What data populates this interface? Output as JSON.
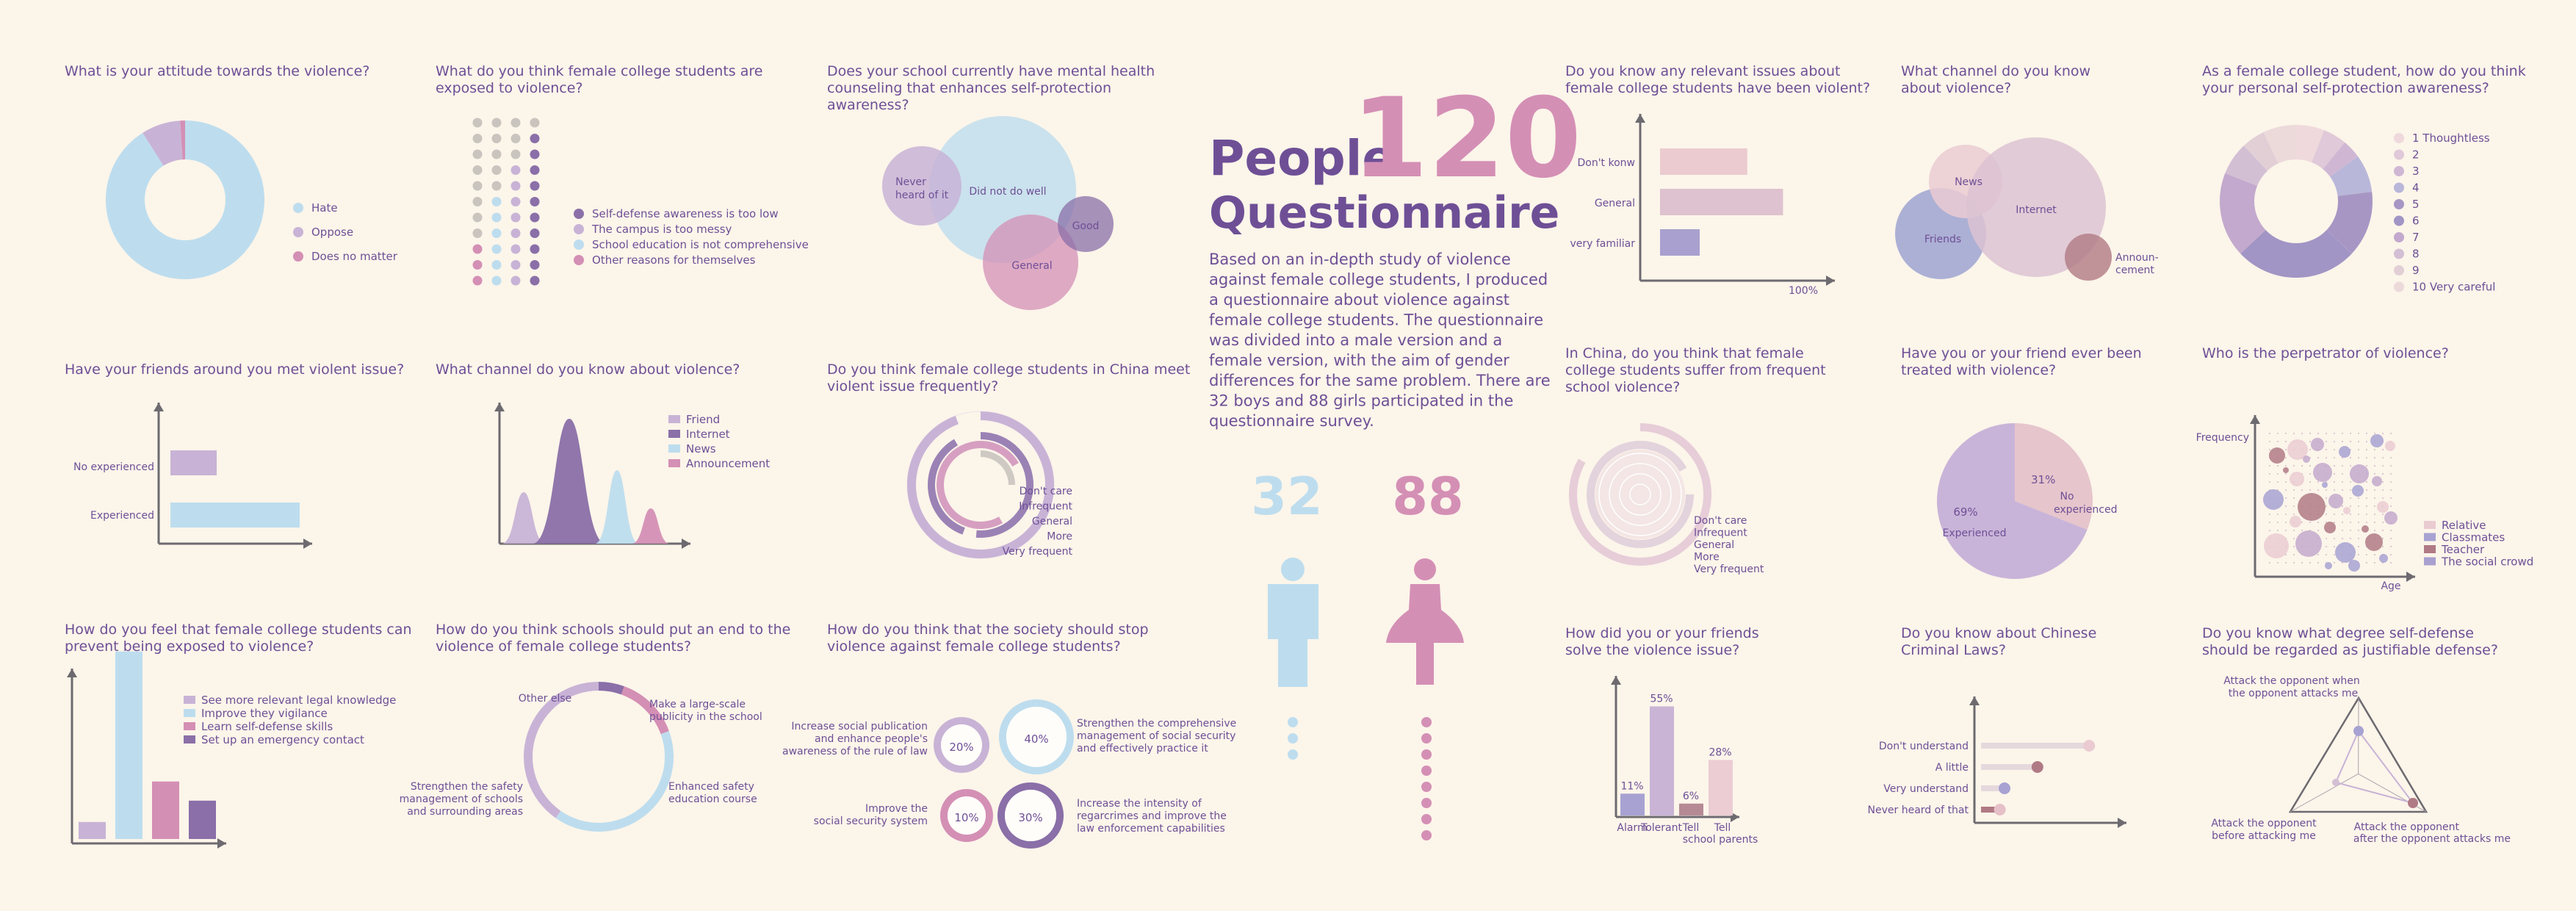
{
  "colors": {
    "bg": "#fcf5ea",
    "purple": "#6e4f96",
    "lightblue": "#bdddee",
    "lilac": "#c8b3d6",
    "pink": "#d48fb5",
    "darkpurple": "#8a6fa8",
    "rose": "#b07a85",
    "blush": "#eacbd2",
    "grey": "#c9c4be"
  },
  "header": {
    "word1": "People",
    "number": "120",
    "word2": "Questionnaire",
    "description": [
      "Based on an in-depth study of violence",
      "against female college students, I produced",
      "a questionnaire about violence against",
      "female college students. The questionnaire",
      "was divided into a male version and a",
      "female version, with the aim of gender",
      "differences for the same problem. There are",
      "32 boys and 88 girls participated in the",
      "questionnaire survey."
    ],
    "boys": "32",
    "girls": "88"
  },
  "chart_data": [
    {
      "id": "c1",
      "type": "pie",
      "title": "What is your attitude towards the violence?",
      "categories": [
        "Hate",
        "Oppose",
        "Does no matter"
      ],
      "values": [
        91,
        8,
        1
      ]
    },
    {
      "id": "c2",
      "type": "dot-matrix",
      "title": [
        "What do you think female college students are",
        "exposed to violence?"
      ],
      "categories": [
        "Self-defense awareness is too low",
        "The campus is too messy",
        "School education is not comprehensive",
        "Other reasons for themselves"
      ]
    },
    {
      "id": "c3",
      "type": "bubble",
      "title": [
        "Does your school currently have mental health",
        "counseling that enhances self-protection",
        "awareness?"
      ],
      "categories": [
        "Never heard of it",
        "Did not do well",
        "Good",
        "General"
      ]
    },
    {
      "id": "c4",
      "type": "bar",
      "title": [
        "Do you know any relevant issues about",
        "female college students have been violent?"
      ],
      "categories": [
        "Don't konw",
        "General",
        "very familiar"
      ],
      "values": [
        44,
        62,
        20
      ],
      "xtick": "100%"
    },
    {
      "id": "c5",
      "type": "bubble",
      "title": [
        "What channel do you know",
        "about violence?"
      ],
      "categories": [
        "News",
        "Internet",
        "Friends",
        "Announcement"
      ]
    },
    {
      "id": "c6",
      "type": "pie",
      "title": [
        "As a female college student, how do you think",
        "your personal self-protection awareness?"
      ],
      "categories": [
        "1  Thoughtless",
        "2",
        "3",
        "4",
        "5",
        "6",
        "7",
        "8",
        "9",
        "10 Very careful"
      ],
      "values": [
        6,
        5,
        4,
        8,
        14,
        26,
        18,
        7,
        5,
        7
      ]
    },
    {
      "id": "c7",
      "type": "bar",
      "title": "Have your friends around you met violent issue?",
      "categories": [
        "No experienced",
        "Experienced"
      ],
      "values": [
        25,
        75
      ]
    },
    {
      "id": "c8",
      "type": "area",
      "title": "What channel do you know about violence?",
      "categories": [
        "Friend",
        "Internet",
        "News",
        "Announcement"
      ]
    },
    {
      "id": "c9",
      "type": "radial-bar",
      "title": [
        "Do you think female college students in China meet",
        "violent issue frequently?"
      ],
      "categories": [
        "Don't care",
        "Infrequent",
        "General",
        "More",
        "Very frequent"
      ]
    },
    {
      "id": "c10",
      "type": "radial-bar",
      "title": [
        "In China, do you think that female",
        "college students suffer from frequent",
        "school violence?"
      ],
      "categories": [
        "Don't care",
        "Infrequent",
        "General",
        "More",
        "Very frequent"
      ]
    },
    {
      "id": "c11",
      "type": "pie",
      "title": [
        "Have you or your friend ever been",
        "treated with violence?"
      ],
      "categories": [
        "No experienced",
        "Experienced"
      ],
      "values": [
        31,
        69
      ],
      "labels": [
        "31%",
        "69%"
      ]
    },
    {
      "id": "c12",
      "type": "scatter",
      "title": "Who is the perpetrator of violence?",
      "xlabel": "Age",
      "ylabel": "Frequency",
      "categories": [
        "Relative",
        "Classmates",
        "Teacher",
        "The social crowd"
      ]
    },
    {
      "id": "c13",
      "type": "bar",
      "title": [
        "How do you feel that female college students can",
        "prevent being exposed to violence?"
      ],
      "categories": [
        "See more relevant legal knowledge",
        "Improve they vigilance",
        "Learn self-defense skills",
        "Set up an emergency contact"
      ],
      "values": [
        8,
        88,
        27,
        18
      ]
    },
    {
      "id": "c14",
      "type": "pie",
      "title": [
        "How do you think schools should put an end to the",
        "violence of female college students?"
      ],
      "categories": [
        "Other else",
        "Make a large-scale publicity in the school",
        "Enhanced safety education course",
        "Strengthen the safety management of schools and surrounding areas"
      ],
      "values": [
        5,
        12,
        43,
        40
      ]
    },
    {
      "id": "c15",
      "type": "pie",
      "title": [
        "How do you think that the society should stop",
        "violence against female college students?"
      ],
      "labels": [
        "20%",
        "40%",
        "10%",
        "30%"
      ],
      "values": [
        20,
        40,
        10,
        30
      ],
      "categories": [
        "Increase social publication and enhance people's awareness of the rule of law",
        "Strengthen the comprehensive management of social security and effectively practice it",
        "Improve the social security system",
        "Increase the intensity of regarcrimes and improve the law enforcement capabilities"
      ]
    },
    {
      "id": "c16",
      "type": "bar",
      "title": [
        "How did you or your friends",
        "solve the violence issue?"
      ],
      "categories": [
        "Alarm",
        "Tolerant",
        "Tell",
        "Tell school parents"
      ],
      "values": [
        11,
        55,
        6,
        28
      ],
      "labels": [
        "11%",
        "55%",
        "6%",
        "28%"
      ]
    },
    {
      "id": "c17",
      "type": "bar",
      "title": [
        "Do you know about Chinese",
        "Criminal Laws?"
      ],
      "categories": [
        "Don't understand",
        "A little",
        "Very understand",
        "Never heard of that"
      ],
      "values": [
        92,
        48,
        20,
        16
      ]
    },
    {
      "id": "c18",
      "type": "radar",
      "title": [
        "Do you know what degree self-defense",
        "should be regarded as justifiable defense?"
      ],
      "categories": [
        "Attack the opponent when the opponent attacks me",
        "Attack the opponent before attacking me",
        "Attack the opponent after the opponent attacks me"
      ]
    }
  ]
}
